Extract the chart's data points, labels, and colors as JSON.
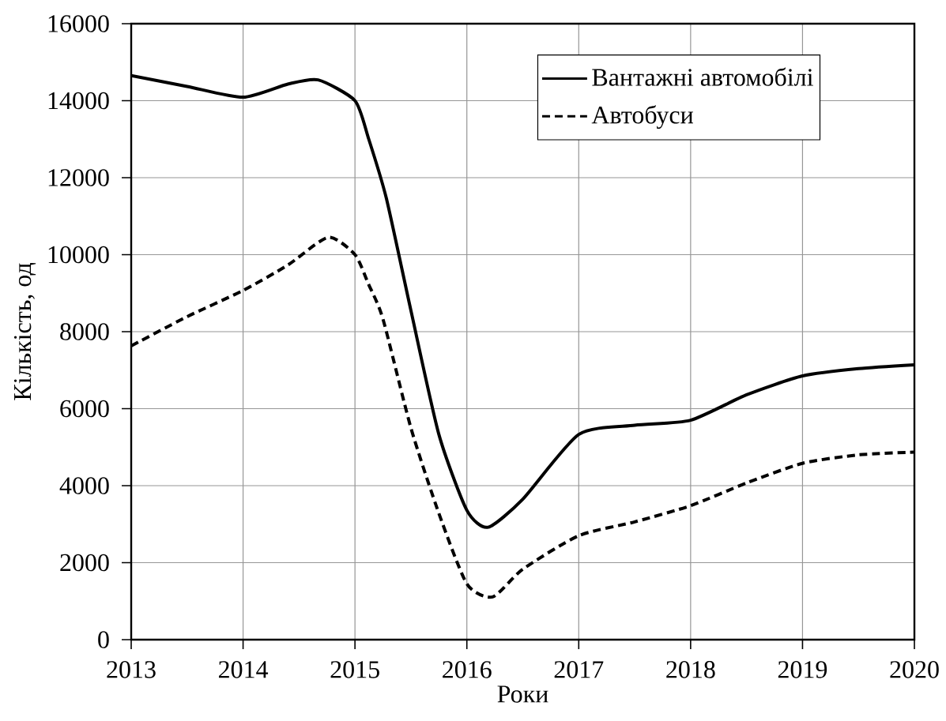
{
  "chart_data": {
    "type": "line",
    "xlabel": "Роки",
    "ylabel": "Кількість, од",
    "xlim": [
      2013,
      2020
    ],
    "xticks": [
      2013,
      2014,
      2015,
      2016,
      2017,
      2018,
      2019,
      2020
    ],
    "ylim": [
      0,
      16000
    ],
    "yticks": [
      0,
      2000,
      4000,
      6000,
      8000,
      10000,
      12000,
      14000,
      16000
    ],
    "grid": true,
    "legend": "top right",
    "marker": "none",
    "series": [
      {
        "name": "Вантажні автомобілі",
        "color": "#000000",
        "line_style": "solid",
        "x": [
          2013,
          2013.5,
          2014,
          2014.4,
          2014.67,
          2015,
          2015.12,
          2015.28,
          2015.5,
          2015.75,
          2016,
          2016.19,
          2016.5,
          2017,
          2017.5,
          2018,
          2018.5,
          2019,
          2019.5,
          2020
        ],
        "values": [
          14650,
          14370,
          14090,
          14430,
          14540,
          14000,
          13030,
          11470,
          8550,
          5330,
          3360,
          2920,
          3650,
          5330,
          5570,
          5700,
          6360,
          6850,
          7040,
          7140
        ]
      },
      {
        "name": "Автобуси",
        "color": "#000000",
        "line_style": "dashed",
        "x": [
          2013,
          2013.5,
          2014,
          2014.4,
          2014.76,
          2015,
          2015.12,
          2015.25,
          2015.5,
          2015.75,
          2016,
          2016.23,
          2016.5,
          2017,
          2017.5,
          2018,
          2018.5,
          2019,
          2019.5,
          2020
        ],
        "values": [
          7630,
          8390,
          9070,
          9730,
          10450,
          10000,
          9240,
          8330,
          5500,
          3280,
          1450,
          1110,
          1830,
          2700,
          3060,
          3480,
          4070,
          4580,
          4800,
          4870
        ]
      }
    ]
  }
}
